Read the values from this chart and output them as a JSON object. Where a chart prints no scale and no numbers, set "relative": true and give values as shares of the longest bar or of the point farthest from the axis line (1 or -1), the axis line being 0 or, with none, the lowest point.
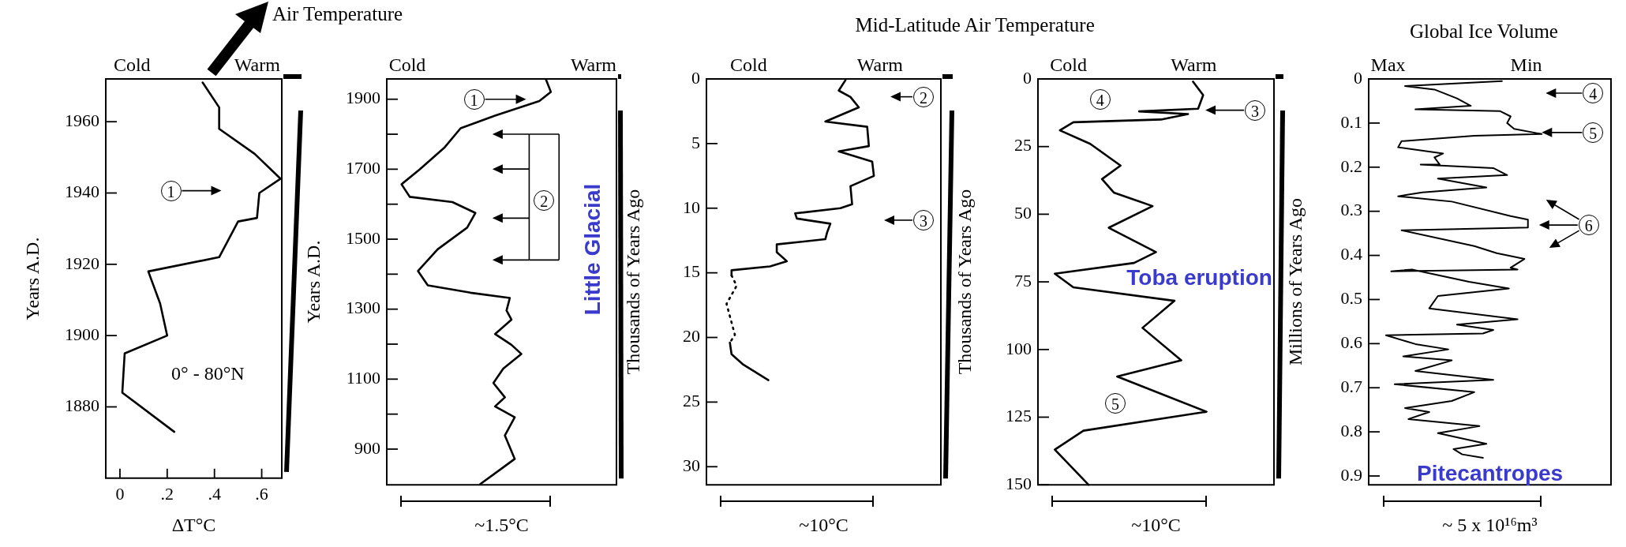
{
  "chart_data": [
    {
      "type": "line",
      "title": "Air Temperature",
      "subtitle": "0° - 80°N",
      "xlabel": "ΔT°C",
      "ylabel": "Years A.D.",
      "orientation": "horizontal",
      "xlim": [
        -0.06,
        0.685
      ],
      "xticks": [
        0,
        {
          "value": 0.2,
          "label": ".2"
        },
        {
          "value": 0.4,
          "label": ".4"
        },
        {
          "value": 0.6,
          "label": ".6"
        }
      ],
      "ylim": [
        1860,
        1972
      ],
      "yticks": [
        1880,
        1900,
        1920,
        1940,
        1960
      ],
      "series": [
        {
          "color": "#000000",
          "x": [
            1971,
            1964,
            1958,
            1951,
            1944,
            1940,
            1933,
            1932,
            1922,
            1918,
            1909,
            1900,
            1895,
            1884,
            1873
          ],
          "values": [
            0.35,
            0.42,
            0.42,
            0.57,
            0.68,
            0.59,
            0.58,
            0.5,
            0.42,
            0.12,
            0.17,
            0.2,
            0.02,
            0.01,
            0.23
          ]
        }
      ],
      "annotations": [
        "Cold",
        "Warm",
        "1"
      ]
    },
    {
      "type": "line",
      "xlabel": "~1.5°C",
      "ylabel": "Years A.D.",
      "orientation": "horizontal",
      "relative": true,
      "ylim": [
        798,
        1958
      ],
      "yticks": [
        900,
        {
          "value": 1000,
          "label": null
        },
        1100,
        {
          "value": 1200,
          "label": null
        },
        1300,
        {
          "value": 1400,
          "label": null
        },
        1500,
        {
          "value": 1600,
          "label": null
        },
        1700,
        {
          "value": 1800,
          "label": null
        },
        1900
      ],
      "series": [
        {
          "color": "#000000",
          "x": [
            1957,
            1921,
            1895,
            1853,
            1817,
            1761,
            1699,
            1657,
            1621,
            1606,
            1575,
            1533,
            1471,
            1409,
            1368,
            1347,
            1332,
            1296,
            1270,
            1229,
            1198,
            1172,
            1130,
            1089,
            1048,
            1022,
            991,
            939,
            872,
            841,
            800
          ],
          "values": [
            0.97,
            1,
            0.93,
            0.66,
            0.45,
            0.35,
            0.2,
            0.09,
            0.14,
            0.4,
            0.54,
            0.49,
            0.31,
            0.19,
            0.25,
            0.51,
            0.75,
            0.73,
            0.76,
            0.66,
            0.76,
            0.82,
            0.71,
            0.65,
            0.72,
            0.66,
            0.78,
            0.72,
            0.78,
            0.69,
            0.57
          ]
        }
      ],
      "annotations": [
        "Cold",
        "Warm",
        "Little Glacial",
        "1",
        "2"
      ]
    },
    {
      "type": "line",
      "title": "Mid-Latitude Air Temperature",
      "xlabel": "~10°C",
      "ylabel": "Thousands of Years Ago",
      "orientation": "horizontal",
      "relative": true,
      "ylim": [
        31.4,
        0
      ],
      "yticks": [
        0,
        5,
        10,
        15,
        20,
        25,
        30
      ],
      "series": [
        {
          "color": "#000000",
          "x": [
            0.1,
            0.9,
            1.4,
            2.2,
            3.3,
            3.7,
            5.2,
            5.6,
            6.4,
            7.5,
            8.3,
            9.7,
            10,
            10.4,
            10.8,
            11.2,
            11.9,
            12.4,
            12.8,
            13.4,
            14.1,
            14.5,
            14.8,
            15.2
          ],
          "values": [
            0.83,
            0.79,
            0.86,
            0.91,
            0.71,
            0.96,
            0.97,
            0.79,
            0.99,
            1,
            0.86,
            0.87,
            0.8,
            0.53,
            0.54,
            0.74,
            0.72,
            0.71,
            0.42,
            0.42,
            0.48,
            0.38,
            0.15,
            0.15
          ]
        },
        {
          "color": "#000000",
          "line_style": "dotted",
          "x": [
            15.2,
            16,
            17.4,
            19.8,
            20.4
          ],
          "values": [
            0.15,
            0.18,
            0.12,
            0.17,
            0.14
          ]
        },
        {
          "color": "#000000",
          "x": [
            20.4,
            21.3,
            22.1,
            23.3
          ],
          "values": [
            0.14,
            0.15,
            0.22,
            0.37
          ]
        }
      ],
      "annotations": [
        "Cold",
        "Warm",
        "2",
        "3"
      ]
    },
    {
      "type": "line",
      "xlabel": "~10°C",
      "ylabel": "Thousands of Years Ago",
      "orientation": "horizontal",
      "relative": true,
      "ylim": [
        150,
        0
      ],
      "yticks": [
        0,
        25,
        50,
        75,
        100,
        125,
        150
      ],
      "series": [
        {
          "color": "#000000",
          "x": [
            1,
            6,
            11,
            12,
            13,
            15,
            16,
            19,
            24,
            32,
            37,
            42,
            47,
            55,
            64,
            68,
            72,
            77,
            82,
            92,
            104,
            110,
            123,
            130,
            137,
            150
          ],
          "values": [
            0.92,
            0.98,
            0.95,
            0.6,
            0.89,
            0.73,
            0.21,
            0.13,
            0.31,
            0.49,
            0.38,
            0.45,
            0.68,
            0.42,
            0.7,
            0.57,
            0.1,
            0.21,
            0.81,
            0.62,
            0.85,
            0.47,
            1,
            0.27,
            0.1,
            0.3
          ]
        }
      ],
      "annotations": [
        "Cold",
        "Warm",
        "Toba eruption",
        "3",
        "4",
        "5"
      ]
    },
    {
      "type": "line",
      "title": "Global Ice Volume",
      "xlabel": "~ 5 x 10¹⁶m³",
      "ylabel": "Millions of Years Ago",
      "orientation": "horizontal",
      "relative": true,
      "ylim": [
        0.92,
        0
      ],
      "yticks": [
        0,
        0.1,
        0.2,
        0.3,
        0.4,
        0.5,
        0.6,
        0.7,
        0.8,
        0.9
      ],
      "series": [
        {
          "color": "#000000",
          "x": [
            0.005,
            0.016,
            0.024,
            0.044,
            0.061,
            0.069,
            0.073,
            0.085,
            0.1,
            0.113,
            0.125,
            0.129,
            0.141,
            0.155,
            0.169,
            0.178,
            0.194,
            0.194,
            0.202,
            0.218,
            0.226,
            0.246,
            0.257,
            0.266,
            0.278,
            0.311,
            0.319,
            0.337,
            0.343,
            0.379,
            0.395,
            0.408,
            0.428,
            0.432,
            0.436,
            0.432,
            0.46,
            0.475,
            0.492,
            0.52,
            0.545,
            0.557,
            0.569,
            0.577,
            0.581,
            0.601,
            0.613,
            0.629,
            0.638,
            0.662,
            0.682,
            0.692,
            0.71,
            0.73,
            0.746,
            0.755,
            0.771,
            0.787,
            0.803,
            0.827,
            0.839,
            0.851,
            0.859
          ],
          "values": [
            0.77,
            0.21,
            0.38,
            0.51,
            0.59,
            0.27,
            0.76,
            0.82,
            0.8,
            0.84,
            1,
            0.61,
            0.19,
            0.17,
            0.43,
            0.38,
            0.41,
            0.3,
            0.72,
            0.8,
            0.4,
            0.68,
            0.31,
            0.17,
            0.48,
            0.82,
            0.92,
            0.92,
            0.19,
            0.61,
            0.74,
            0.9,
            0.82,
            0.86,
            0.13,
            0.25,
            0.58,
            0.81,
            0.4,
            0.35,
            0.86,
            0.51,
            0.72,
            0.66,
            0.1,
            0.27,
            0.46,
            0.2,
            0.48,
            0.27,
            0.72,
            0.15,
            0.61,
            0.48,
            0.21,
            0.35,
            0.23,
            0.64,
            0.4,
            0.68,
            0.49,
            0.54,
            0.66
          ]
        }
      ],
      "annotations": [
        "Max",
        "Min",
        "Pitecantropes",
        "4",
        "5",
        "6"
      ]
    }
  ]
}
